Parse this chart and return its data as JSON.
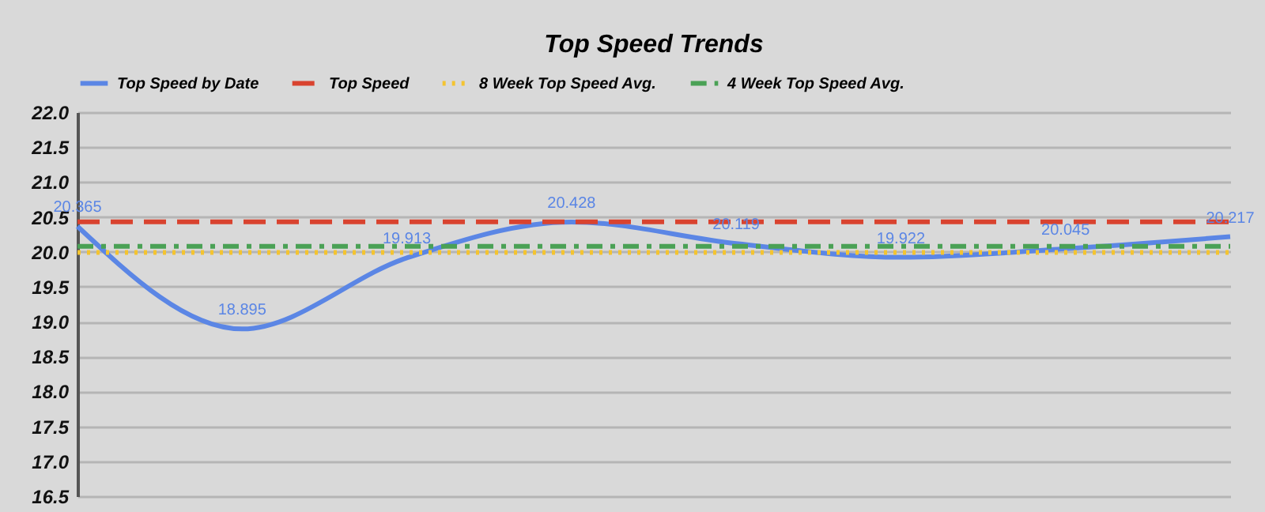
{
  "chart_data": {
    "type": "line",
    "title": "Top Speed Trends",
    "categories": [
      null,
      null,
      null,
      null,
      null,
      null,
      null,
      null
    ],
    "series": [
      {
        "name": "Top Speed by Date",
        "color": "#5b86e5",
        "line_style": "solid",
        "values": [
          20.365,
          18.895,
          19.913,
          20.428,
          20.119,
          19.922,
          20.045,
          20.217
        ],
        "value_labels": [
          "20.365",
          "18.895",
          "19.913",
          "20.428",
          "20.119",
          "19.922",
          "20.045",
          "20.217"
        ]
      },
      {
        "name": "Top Speed",
        "color": "#d9432f",
        "line_style": "dashed",
        "values": [
          20.43,
          20.43,
          20.43,
          20.43,
          20.43,
          20.43,
          20.43,
          20.43
        ]
      },
      {
        "name": "8 Week Top Speed Avg.",
        "color": "#f4c430",
        "line_style": "dotted",
        "values": [
          19.99,
          19.99,
          19.99,
          19.99,
          19.99,
          19.99,
          19.99,
          19.99
        ]
      },
      {
        "name": "4 Week Top Speed Avg.",
        "color": "#4aa155",
        "line_style": "dashdot",
        "values": [
          20.08,
          20.08,
          20.08,
          20.08,
          20.08,
          20.08,
          20.08,
          20.08
        ]
      }
    ],
    "ylim": [
      16.5,
      22.0
    ],
    "yticks": [
      {
        "value": 16.5,
        "label": "16.5"
      },
      {
        "value": 17,
        "label": "17.0"
      },
      {
        "value": 17.5,
        "label": "17.5"
      },
      {
        "value": 18,
        "label": "18.0"
      },
      {
        "value": 18.5,
        "label": "18.5"
      },
      {
        "value": 19,
        "label": "19.0"
      },
      {
        "value": 19.5,
        "label": "19.5"
      },
      {
        "value": 20,
        "label": "20.0"
      },
      {
        "value": 20.5,
        "label": "20.5"
      },
      {
        "value": 21,
        "label": "21.0"
      },
      {
        "value": 21.5,
        "label": "21.5"
      },
      {
        "value": 22,
        "label": "22.0"
      }
    ],
    "grid": "y",
    "legend": "top",
    "tick_labels": "y",
    "marker": "none"
  }
}
